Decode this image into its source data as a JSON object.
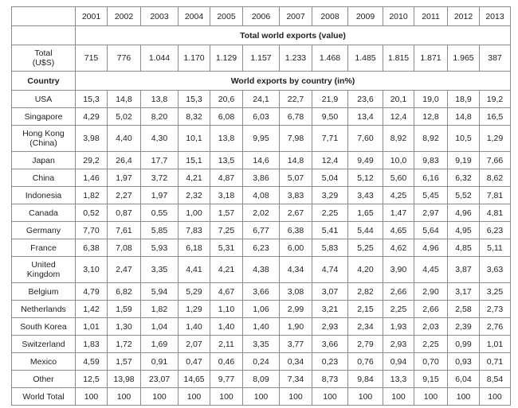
{
  "years": [
    "2001",
    "2002",
    "2003",
    "2004",
    "2005",
    "2006",
    "2007",
    "2008",
    "2009",
    "2010",
    "2011",
    "2012",
    "2013"
  ],
  "total_section_title": "Total world exports (value)",
  "total_row": {
    "label_line1": "Total",
    "label_line2": "(U$S)",
    "values": [
      "715",
      "776",
      "1.044",
      "1.170",
      "1.129",
      "1.157",
      "1.233",
      "1.468",
      "1.485",
      "1.815",
      "1.871",
      "1.965",
      "387"
    ]
  },
  "country_header": "Country",
  "country_section_title": "World exports by country (in%)",
  "rows": [
    {
      "l1": "USA",
      "l2": "",
      "v": [
        "15,3",
        "14,8",
        "13,8",
        "15,3",
        "20,6",
        "24,1",
        "22,7",
        "21,9",
        "23,6",
        "20,1",
        "19,0",
        "18,9",
        "19,2"
      ]
    },
    {
      "l1": "Singapore",
      "l2": "",
      "v": [
        "4,29",
        "5,02",
        "8,20",
        "8,32",
        "6,08",
        "6,03",
        "6,78",
        "9,50",
        "13,4",
        "12,4",
        "12,8",
        "14,8",
        "16,5"
      ]
    },
    {
      "l1": "Hong Kong",
      "l2": "(China)",
      "v": [
        "3,98",
        "4,40",
        "4,30",
        "10,1",
        "13,8",
        "9,95",
        "7,98",
        "7,71",
        "7,60",
        "8,92",
        "8,92",
        "10,5",
        "1,29"
      ]
    },
    {
      "l1": "Japan",
      "l2": "",
      "v": [
        "29,2",
        "26,4",
        "17,7",
        "15,1",
        "13,5",
        "14,6",
        "14,8",
        "12,4",
        "9,49",
        "10,0",
        "9,83",
        "9,19",
        "7,66"
      ]
    },
    {
      "l1": "China",
      "l2": "",
      "v": [
        "1,46",
        "1,97",
        "3,72",
        "4,21",
        "4,87",
        "3,86",
        "5,07",
        "5,04",
        "5,12",
        "5,60",
        "6,16",
        "6,32",
        "8,62"
      ]
    },
    {
      "l1": "Indonesia",
      "l2": "",
      "v": [
        "1,82",
        "2,27",
        "1,97",
        "2,32",
        "3,18",
        "4,08",
        "3,83",
        "3,29",
        "3,43",
        "4,25",
        "5,45",
        "5,52",
        "7,81"
      ]
    },
    {
      "l1": "Canada",
      "l2": "",
      "v": [
        "0,52",
        "0,87",
        "0,55",
        "1,00",
        "1,57",
        "2,02",
        "2,67",
        "2,25",
        "1,65",
        "1,47",
        "2,97",
        "4,96",
        "4,81"
      ]
    },
    {
      "l1": "Germany",
      "l2": "",
      "v": [
        "7,70",
        "7,61",
        "5,85",
        "7,83",
        "7,25",
        "6,77",
        "6,38",
        "5,41",
        "5,44",
        "4,65",
        "5,64",
        "4,95",
        "6,23"
      ]
    },
    {
      "l1": "France",
      "l2": "",
      "v": [
        "6,38",
        "7,08",
        "5,93",
        "6,18",
        "5,31",
        "6,23",
        "6,00",
        "5,83",
        "5,25",
        "4,62",
        "4,96",
        "4,85",
        "5,11"
      ]
    },
    {
      "l1": "United",
      "l2": "Kingdom",
      "v": [
        "3,10",
        "2,47",
        "3,35",
        "4,41",
        "4,21",
        "4,38",
        "4,34",
        "4,74",
        "4,20",
        "3,90",
        "4,45",
        "3,87",
        "3,63"
      ]
    },
    {
      "l1": "Belgium",
      "l2": "",
      "v": [
        "4,79",
        "6,82",
        "5,94",
        "5,29",
        "4,67",
        "3,66",
        "3,08",
        "3,07",
        "2,82",
        "2,66",
        "2,90",
        "3,17",
        "3,25"
      ]
    },
    {
      "l1": "Netherlands",
      "l2": "",
      "v": [
        "1,42",
        "1,59",
        "1,82",
        "1,29",
        "1,10",
        "1,06",
        "2,99",
        "3,21",
        "2,15",
        "2,25",
        "2,66",
        "2,58",
        "2,73"
      ]
    },
    {
      "l1": "South Korea",
      "l2": "",
      "v": [
        "1,01",
        "1,30",
        "1,04",
        "1,40",
        "1,40",
        "1,40",
        "1,90",
        "2,93",
        "2,34",
        "1,93",
        "2,03",
        "2,39",
        "2,76"
      ]
    },
    {
      "l1": "Switzerland",
      "l2": "",
      "v": [
        "1,83",
        "1,72",
        "1,69",
        "2,07",
        "2,11",
        "3,35",
        "3,77",
        "3,66",
        "2,79",
        "2,93",
        "2,25",
        "0,99",
        "1,01"
      ]
    },
    {
      "l1": "Mexico",
      "l2": "",
      "v": [
        "4,59",
        "1,57",
        "0,91",
        "0,47",
        "0,46",
        "0,24",
        "0,34",
        "0,23",
        "0,76",
        "0,94",
        "0,70",
        "0,93",
        "0,71"
      ]
    },
    {
      "l1": "Other",
      "l2": "",
      "v": [
        "12,5",
        "13,98",
        "23,07",
        "14,65",
        "9,77",
        "8,09",
        "7,34",
        "8,73",
        "9,84",
        "13,3",
        "9,15",
        "6,04",
        "8,54"
      ]
    },
    {
      "l1": "World Total",
      "l2": "",
      "v": [
        "100",
        "100",
        "100",
        "100",
        "100",
        "100",
        "100",
        "100",
        "100",
        "100",
        "100",
        "100",
        "100"
      ]
    }
  ]
}
